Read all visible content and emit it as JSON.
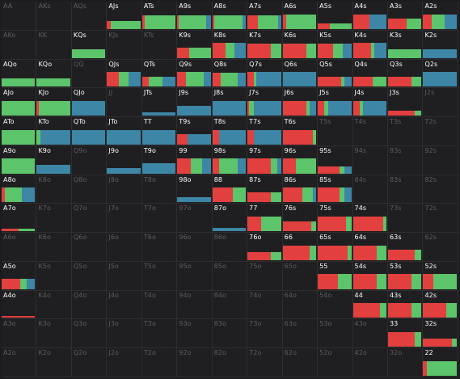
{
  "colors": {
    "raise": "#e2403f",
    "call": "#5cc46a",
    "mix": "#3d86a6",
    "background": "#1f1f21",
    "grid_line": "#2e2e31",
    "label_active": "#ffffff",
    "label_dim": "#5e5e62"
  },
  "hands": [
    "AA",
    "AKs",
    "AQs",
    "AJs",
    "ATs",
    "A9s",
    "A8s",
    "A7s",
    "A6s",
    "A5s",
    "A4s",
    "A3s",
    "A2s",
    "AKo",
    "KK",
    "KQs",
    "KJs",
    "KTs",
    "K9s",
    "K8s",
    "K7s",
    "K6s",
    "K5s",
    "K4s",
    "K3s",
    "K2s",
    "AQo",
    "KQo",
    "QQ",
    "QJs",
    "QTs",
    "Q9s",
    "Q8s",
    "Q7s",
    "Q6s",
    "Q5s",
    "Q4s",
    "Q3s",
    "Q2s",
    "AJo",
    "KJo",
    "QJo",
    "JJ",
    "JTs",
    "J9s",
    "J8s",
    "J7s",
    "J6s",
    "J5s",
    "J4s",
    "J3s",
    "J2s",
    "ATo",
    "KTo",
    "QTo",
    "JTo",
    "TT",
    "T9s",
    "T8s",
    "T7s",
    "T6s",
    "T5s",
    "T4s",
    "T3s",
    "T2s",
    "A9o",
    "K9o",
    "Q9o",
    "J9o",
    "T9o",
    "99",
    "98s",
    "97s",
    "96s",
    "95s",
    "94s",
    "93s",
    "92s",
    "A8o",
    "K8o",
    "Q8o",
    "J8o",
    "T8o",
    "98o",
    "88",
    "87s",
    "86s",
    "85s",
    "84s",
    "83s",
    "82s",
    "A7o",
    "K7o",
    "Q7o",
    "J7o",
    "T7o",
    "97o",
    "87o",
    "77",
    "76s",
    "75s",
    "74s",
    "73s",
    "72s",
    "A6o",
    "K6o",
    "Q6o",
    "J6o",
    "T6o",
    "96o",
    "86o",
    "76o",
    "66",
    "65s",
    "64s",
    "63s",
    "62s",
    "A5o",
    "K5o",
    "Q5o",
    "J5o",
    "T5o",
    "95o",
    "85o",
    "75o",
    "65o",
    "55",
    "54s",
    "53s",
    "52s",
    "A4o",
    "K4o",
    "Q4o",
    "J4o",
    "T4o",
    "94o",
    "84o",
    "74o",
    "64o",
    "54o",
    "44",
    "43s",
    "42s",
    "A3o",
    "K3o",
    "Q3o",
    "J3o",
    "T3o",
    "93o",
    "83o",
    "73o",
    "63o",
    "53o",
    "43o",
    "33",
    "32s",
    "A2o",
    "K2o",
    "Q2o",
    "J2o",
    "T2o",
    "92o",
    "82o",
    "72o",
    "62o",
    "52o",
    "42o",
    "32o",
    "22"
  ],
  "frequencies": {
    "AJs": {
      "level": 0.45,
      "mix": [
        [
          "raise",
          0.12
        ],
        [
          "call",
          0.88
        ]
      ]
    },
    "ATs": {
      "level": 0.75,
      "mix": [
        [
          "raise",
          0.08
        ],
        [
          "call",
          0.92
        ]
      ]
    },
    "A9s": {
      "level": 0.75,
      "mix": [
        [
          "raise",
          0.04
        ],
        [
          "call",
          0.82
        ],
        [
          "mix",
          0.14
        ]
      ]
    },
    "A8s": {
      "level": 0.75,
      "mix": [
        [
          "raise",
          0.05
        ],
        [
          "call",
          0.85
        ],
        [
          "mix",
          0.1
        ]
      ]
    },
    "A7s": {
      "level": 0.75,
      "mix": [
        [
          "raise",
          0.3
        ],
        [
          "call",
          0.62
        ],
        [
          "mix",
          0.08
        ]
      ]
    },
    "A6s": {
      "level": 0.8,
      "mix": [
        [
          "raise",
          0.1
        ],
        [
          "call",
          0.9
        ]
      ]
    },
    "A5s": {
      "level": 0.3,
      "mix": [
        [
          "raise",
          0.35
        ],
        [
          "call",
          0.65
        ]
      ]
    },
    "A4s": {
      "level": 0.8,
      "mix": [
        [
          "raise",
          0.5
        ],
        [
          "mix",
          0.5
        ]
      ]
    },
    "A3s": {
      "level": 0.55,
      "mix": [
        [
          "raise",
          0.55
        ],
        [
          "call",
          0.45
        ]
      ]
    },
    "A2s": {
      "level": 0.8,
      "mix": [
        [
          "raise",
          0.25
        ],
        [
          "call",
          0.4
        ],
        [
          "mix",
          0.35
        ]
      ]
    },
    "KQs": {
      "level": 0.45,
      "mix": [
        [
          "call",
          1.0
        ]
      ]
    },
    "K9s": {
      "level": 0.55,
      "mix": [
        [
          "raise",
          0.35
        ],
        [
          "call",
          0.65
        ]
      ]
    },
    "K8s": {
      "level": 0.8,
      "mix": [
        [
          "raise",
          0.4
        ],
        [
          "call",
          0.25
        ],
        [
          "mix",
          0.35
        ]
      ]
    },
    "K7s": {
      "level": 0.75,
      "mix": [
        [
          "raise",
          0.7
        ],
        [
          "call",
          0.3
        ]
      ]
    },
    "K6s": {
      "level": 0.75,
      "mix": [
        [
          "raise",
          0.72
        ],
        [
          "call",
          0.28
        ]
      ]
    },
    "K5s": {
      "level": 0.75,
      "mix": [
        [
          "raise",
          0.45
        ],
        [
          "call",
          0.3
        ],
        [
          "mix",
          0.25
        ]
      ]
    },
    "K4s": {
      "level": 0.8,
      "mix": [
        [
          "raise",
          0.55
        ],
        [
          "call",
          0.1
        ],
        [
          "mix",
          0.35
        ]
      ]
    },
    "K3s": {
      "level": 0.45,
      "mix": [
        [
          "call",
          1.0
        ]
      ]
    },
    "K2s": {
      "level": 0.45,
      "mix": [
        [
          "mix",
          1.0
        ]
      ]
    },
    "AQo": {
      "level": 0.45,
      "mix": [
        [
          "call",
          1.0
        ]
      ]
    },
    "KQo": {
      "level": 0.45,
      "mix": [
        [
          "call",
          1.0
        ]
      ]
    },
    "QJs": {
      "level": 0.8,
      "mix": [
        [
          "raise",
          0.35
        ],
        [
          "call",
          0.3
        ],
        [
          "mix",
          0.35
        ]
      ]
    },
    "QTs": {
      "level": 0.55,
      "mix": [
        [
          "raise",
          0.2
        ],
        [
          "call",
          0.4
        ],
        [
          "mix",
          0.4
        ]
      ]
    },
    "Q9s": {
      "level": 0.8,
      "mix": [
        [
          "raise",
          0.25
        ],
        [
          "call",
          0.55
        ],
        [
          "mix",
          0.2
        ]
      ]
    },
    "Q8s": {
      "level": 0.75,
      "mix": [
        [
          "raise",
          0.25
        ],
        [
          "call",
          0.5
        ],
        [
          "mix",
          0.25
        ]
      ]
    },
    "Q7s": {
      "level": 0.8,
      "mix": [
        [
          "raise",
          0.2
        ],
        [
          "call",
          0.05
        ],
        [
          "mix",
          0.75
        ]
      ]
    },
    "Q6s": {
      "level": 0.8,
      "mix": [
        [
          "mix",
          1.0
        ]
      ]
    },
    "Q5s": {
      "level": 0.55,
      "mix": [
        [
          "raise",
          0.7
        ],
        [
          "call",
          0.1
        ],
        [
          "mix",
          0.2
        ]
      ]
    },
    "Q4s": {
      "level": 0.55,
      "mix": [
        [
          "raise",
          0.6
        ],
        [
          "call",
          0.4
        ]
      ]
    },
    "Q3s": {
      "level": 0.55,
      "mix": [
        [
          "raise",
          0.7
        ],
        [
          "call",
          0.3
        ]
      ]
    },
    "Q2s": {
      "level": 0.8,
      "mix": [
        [
          "mix",
          1.0
        ]
      ]
    },
    "AJo": {
      "level": 0.8,
      "mix": [
        [
          "call",
          1.0
        ]
      ]
    },
    "KJo": {
      "level": 0.8,
      "mix": [
        [
          "raise",
          0.05
        ],
        [
          "call",
          0.95
        ]
      ]
    },
    "QJo": {
      "level": 0.8,
      "mix": [
        [
          "mix",
          1.0
        ]
      ]
    },
    "JTs": {
      "level": 0.2,
      "mix": [
        [
          "mix",
          1.0
        ]
      ]
    },
    "J9s": {
      "level": 0.55,
      "mix": [
        [
          "mix",
          1.0
        ]
      ]
    },
    "J8s": {
      "level": 0.8,
      "mix": [
        [
          "mix",
          1.0
        ]
      ]
    },
    "J7s": {
      "level": 0.8,
      "mix": [
        [
          "raise",
          0.05
        ],
        [
          "call",
          0.15
        ],
        [
          "mix",
          0.8
        ]
      ]
    },
    "J6s": {
      "level": 0.8,
      "mix": [
        [
          "raise",
          0.7
        ],
        [
          "call",
          0.1
        ],
        [
          "mix",
          0.2
        ]
      ]
    },
    "J5s": {
      "level": 0.8,
      "mix": [
        [
          "raise",
          0.2
        ],
        [
          "call",
          0.1
        ],
        [
          "mix",
          0.7
        ]
      ]
    },
    "J4s": {
      "level": 0.8,
      "mix": [
        [
          "raise",
          0.2
        ],
        [
          "call",
          0.1
        ],
        [
          "mix",
          0.7
        ]
      ]
    },
    "J3s": {
      "level": 0.25,
      "mix": [
        [
          "raise",
          0.8
        ],
        [
          "call",
          0.2
        ]
      ]
    },
    "ATo": {
      "level": 0.8,
      "mix": [
        [
          "call",
          1.0
        ]
      ]
    },
    "KTo": {
      "level": 0.8,
      "mix": [
        [
          "call",
          0.1
        ],
        [
          "mix",
          0.9
        ]
      ]
    },
    "QTo": {
      "level": 0.8,
      "mix": [
        [
          "mix",
          1.0
        ]
      ]
    },
    "JTo": {
      "level": 0.8,
      "mix": [
        [
          "mix",
          1.0
        ]
      ]
    },
    "TT": {
      "level": 0.8,
      "mix": [
        [
          "mix",
          1.0
        ]
      ]
    },
    "T9s": {
      "level": 0.55,
      "mix": [
        [
          "raise",
          0.3
        ],
        [
          "mix",
          0.7
        ]
      ]
    },
    "T8s": {
      "level": 0.8,
      "mix": [
        [
          "raise",
          0.2
        ],
        [
          "mix",
          0.8
        ]
      ]
    },
    "T7s": {
      "level": 0.8,
      "mix": [
        [
          "raise",
          0.2
        ],
        [
          "mix",
          0.8
        ]
      ]
    },
    "T6s": {
      "level": 0.8,
      "mix": [
        [
          "raise",
          0.9
        ],
        [
          "call",
          0.1
        ]
      ]
    },
    "A9o": {
      "level": 0.8,
      "mix": [
        [
          "call",
          1.0
        ]
      ]
    },
    "K9o": {
      "level": 0.45,
      "mix": [
        [
          "mix",
          1.0
        ]
      ]
    },
    "J9o": {
      "level": 0.3,
      "mix": [
        [
          "mix",
          1.0
        ]
      ]
    },
    "T9o": {
      "level": 0.55,
      "mix": [
        [
          "mix",
          1.0
        ]
      ]
    },
    "99": {
      "level": 0.8,
      "mix": [
        [
          "raise",
          0.4
        ],
        [
          "call",
          0.35
        ],
        [
          "mix",
          0.25
        ]
      ]
    },
    "98s": {
      "level": 0.8,
      "mix": [
        [
          "raise",
          0.2
        ],
        [
          "call",
          0.55
        ],
        [
          "mix",
          0.25
        ]
      ]
    },
    "97s": {
      "level": 0.8,
      "mix": [
        [
          "raise",
          0.7
        ],
        [
          "call",
          0.2
        ],
        [
          "mix",
          0.1
        ]
      ]
    },
    "96s": {
      "level": 0.8,
      "mix": [
        [
          "raise",
          0.4
        ],
        [
          "call",
          0.6
        ]
      ]
    },
    "95s": {
      "level": 0.4,
      "mix": [
        [
          "raise",
          0.65
        ],
        [
          "call",
          0.15
        ],
        [
          "mix",
          0.2
        ]
      ]
    },
    "A8o": {
      "level": 0.8,
      "mix": [
        [
          "raise",
          0.1
        ],
        [
          "call",
          0.5
        ],
        [
          "mix",
          0.4
        ]
      ]
    },
    "98o": {
      "level": 0.3,
      "mix": [
        [
          "mix",
          1.0
        ]
      ]
    },
    "88": {
      "level": 0.8,
      "mix": [
        [
          "raise",
          0.6
        ],
        [
          "call",
          0.4
        ]
      ]
    },
    "87s": {
      "level": 0.55,
      "mix": [
        [
          "raise",
          0.7
        ],
        [
          "call",
          0.3
        ]
      ]
    },
    "86s": {
      "level": 0.8,
      "mix": [
        [
          "raise",
          0.6
        ],
        [
          "call",
          0.3
        ],
        [
          "mix",
          0.1
        ]
      ]
    },
    "85s": {
      "level": 0.8,
      "mix": [
        [
          "raise",
          0.65
        ],
        [
          "call",
          0.15
        ],
        [
          "mix",
          0.2
        ]
      ]
    },
    "A7o": {
      "level": 0.15,
      "mix": [
        [
          "raise",
          0.5
        ],
        [
          "call",
          0.5
        ]
      ]
    },
    "87o": {
      "level": 0.2,
      "mix": [
        [
          "mix",
          1.0
        ]
      ]
    },
    "77": {
      "level": 0.8,
      "mix": [
        [
          "raise",
          0.4
        ],
        [
          "call",
          0.6
        ]
      ]
    },
    "76s": {
      "level": 0.55,
      "mix": [
        [
          "raise",
          0.85
        ],
        [
          "call",
          0.15
        ]
      ]
    },
    "75s": {
      "level": 0.8,
      "mix": [
        [
          "raise",
          0.85
        ],
        [
          "call",
          0.15
        ]
      ]
    },
    "74s": {
      "level": 0.8,
      "mix": [
        [
          "raise",
          0.9
        ],
        [
          "call",
          0.1
        ]
      ]
    },
    "76o": {
      "level": 0.45,
      "mix": [
        [
          "raise",
          0.7
        ],
        [
          "call",
          0.3
        ]
      ]
    },
    "66": {
      "level": 0.8,
      "mix": [
        [
          "raise",
          0.8
        ],
        [
          "call",
          0.2
        ]
      ]
    },
    "65s": {
      "level": 0.8,
      "mix": [
        [
          "raise",
          0.9
        ],
        [
          "call",
          0.1
        ]
      ]
    },
    "64s": {
      "level": 0.8,
      "mix": [
        [
          "raise",
          0.7
        ],
        [
          "call",
          0.3
        ]
      ]
    },
    "63s": {
      "level": 0.55,
      "mix": [
        [
          "raise",
          0.8
        ],
        [
          "call",
          0.2
        ]
      ]
    },
    "A5o": {
      "level": 0.55,
      "mix": [
        [
          "raise",
          0.55
        ],
        [
          "call",
          0.2
        ],
        [
          "mix",
          0.25
        ]
      ]
    },
    "55": {
      "level": 0.8,
      "mix": [
        [
          "raise",
          0.6
        ],
        [
          "call",
          0.4
        ]
      ]
    },
    "54s": {
      "level": 0.8,
      "mix": [
        [
          "raise",
          0.7
        ],
        [
          "call",
          0.3
        ]
      ]
    },
    "53s": {
      "level": 0.8,
      "mix": [
        [
          "raise",
          0.7
        ],
        [
          "call",
          0.3
        ]
      ]
    },
    "52s": {
      "level": 0.8,
      "mix": [
        [
          "raise",
          0.3
        ],
        [
          "call",
          0.7
        ]
      ]
    },
    "A4o": {
      "level": 0.05,
      "mix": [
        [
          "raise",
          1.0
        ]
      ]
    },
    "44": {
      "level": 0.8,
      "mix": [
        [
          "raise",
          0.8
        ],
        [
          "call",
          0.2
        ]
      ]
    },
    "43s": {
      "level": 0.8,
      "mix": [
        [
          "raise",
          0.7
        ],
        [
          "call",
          0.3
        ]
      ]
    },
    "42s": {
      "level": 0.8,
      "mix": [
        [
          "raise",
          0.7
        ],
        [
          "call",
          0.3
        ]
      ]
    },
    "33": {
      "level": 0.8,
      "mix": [
        [
          "raise",
          0.8
        ],
        [
          "call",
          0.2
        ]
      ]
    },
    "32s": {
      "level": 0.45,
      "mix": [
        [
          "raise",
          0.85
        ],
        [
          "call",
          0.15
        ]
      ]
    },
    "22": {
      "level": 0.8,
      "mix": [
        [
          "raise",
          0.1
        ],
        [
          "call",
          0.9
        ]
      ]
    }
  }
}
